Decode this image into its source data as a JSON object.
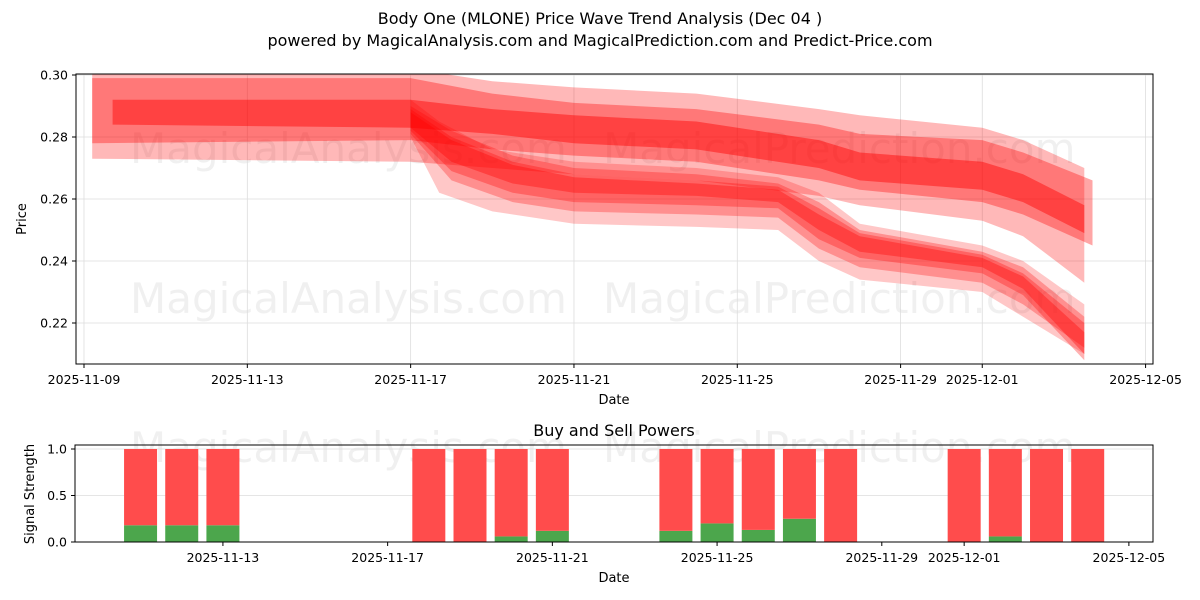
{
  "header": {
    "title": "Body One (MLONE) Price Wave Trend Analysis (Dec 04 )",
    "subtitle": "powered by MagicalAnalysis.com and MagicalPrediction.com and Predict-Price.com"
  },
  "watermarks": [
    "MagicalAnalysis.com",
    "MagicalPrediction.com"
  ],
  "colors": {
    "band": "#ff0000",
    "sell": "#ff4c4c",
    "buy": "#4ca64c",
    "grid": "#dddddd"
  },
  "chart_data": [
    {
      "type": "area",
      "title": "Body One (MLONE) Price Wave Trend Analysis (Dec 04 )",
      "xlabel": "Date",
      "ylabel": "Price",
      "ylim": [
        0.2068,
        0.3
      ],
      "grid": true,
      "x_ticks": [
        "2025-11-09",
        "2025-11-13",
        "2025-11-17",
        "2025-11-21",
        "2025-11-25",
        "2025-11-29",
        "2025-12-01",
        "2025-12-05"
      ],
      "y_ticks": [
        "0.22",
        "0.24",
        "0.26",
        "0.28",
        "0.30"
      ],
      "series": [
        {
          "name": "wave-upper-1",
          "opacity": 0.28,
          "x": [
            "2025-11-09.2",
            "2025-11-17",
            "2025-11-19",
            "2025-11-21",
            "2025-11-24",
            "2025-11-27",
            "2025-11-28",
            "2025-12-01",
            "2025-12-02",
            "2025-12-03.5"
          ],
          "upper": [
            0.302,
            0.302,
            0.298,
            0.296,
            0.294,
            0.289,
            0.287,
            0.283,
            0.279,
            0.27
          ],
          "lower": [
            0.273,
            0.272,
            0.27,
            0.268,
            0.266,
            0.261,
            0.258,
            0.253,
            0.248,
            0.233
          ]
        },
        {
          "name": "wave-upper-2",
          "opacity": 0.35,
          "x": [
            "2025-11-09.2",
            "2025-11-17",
            "2025-11-19",
            "2025-11-21",
            "2025-11-24",
            "2025-11-27",
            "2025-11-28",
            "2025-12-01",
            "2025-12-02",
            "2025-12-03.7"
          ],
          "upper": [
            0.299,
            0.299,
            0.294,
            0.291,
            0.289,
            0.284,
            0.281,
            0.279,
            0.275,
            0.266
          ],
          "lower": [
            0.278,
            0.279,
            0.276,
            0.274,
            0.272,
            0.266,
            0.263,
            0.259,
            0.255,
            0.245
          ]
        },
        {
          "name": "wave-upper-3",
          "opacity": 0.45,
          "x": [
            "2025-11-09.7",
            "2025-11-17",
            "2025-11-19",
            "2025-11-21",
            "2025-11-24",
            "2025-11-27",
            "2025-11-28",
            "2025-12-01",
            "2025-12-02",
            "2025-12-03.5"
          ],
          "upper": [
            0.292,
            0.292,
            0.289,
            0.287,
            0.285,
            0.279,
            0.275,
            0.272,
            0.268,
            0.258
          ],
          "lower": [
            0.284,
            0.283,
            0.281,
            0.278,
            0.276,
            0.27,
            0.266,
            0.263,
            0.259,
            0.249
          ]
        },
        {
          "name": "wave-lower-1",
          "opacity": 0.22,
          "x": [
            "2025-11-17",
            "2025-11-17.7",
            "2025-11-19",
            "2025-11-21",
            "2025-11-24",
            "2025-11-26",
            "2025-11-27",
            "2025-11-28",
            "2025-12-01",
            "2025-12-02",
            "2025-12-03.5"
          ],
          "upper": [
            0.292,
            0.285,
            0.276,
            0.272,
            0.27,
            0.267,
            0.262,
            0.252,
            0.245,
            0.24,
            0.226
          ],
          "lower": [
            0.28,
            0.262,
            0.256,
            0.252,
            0.251,
            0.25,
            0.24,
            0.234,
            0.23,
            0.222,
            0.21
          ]
        },
        {
          "name": "wave-lower-2",
          "opacity": 0.28,
          "x": [
            "2025-11-17",
            "2025-11-18",
            "2025-11-19.5",
            "2025-11-21",
            "2025-11-24",
            "2025-11-26",
            "2025-11-27",
            "2025-11-28",
            "2025-12-01",
            "2025-12-02",
            "2025-12-03.5"
          ],
          "upper": [
            0.29,
            0.282,
            0.274,
            0.27,
            0.268,
            0.265,
            0.259,
            0.25,
            0.243,
            0.238,
            0.222
          ],
          "lower": [
            0.281,
            0.266,
            0.259,
            0.256,
            0.255,
            0.254,
            0.244,
            0.238,
            0.233,
            0.226,
            0.212
          ]
        },
        {
          "name": "wave-lower-3",
          "opacity": 0.3,
          "x": [
            "2025-11-17",
            "2025-11-18",
            "2025-11-19.5",
            "2025-11-21",
            "2025-11-24",
            "2025-11-26",
            "2025-11-27",
            "2025-11-28",
            "2025-12-01",
            "2025-12-02",
            "2025-12-03.5"
          ],
          "upper": [
            0.289,
            0.28,
            0.272,
            0.268,
            0.266,
            0.264,
            0.257,
            0.249,
            0.242,
            0.236,
            0.22
          ],
          "lower": [
            0.282,
            0.269,
            0.262,
            0.259,
            0.258,
            0.257,
            0.247,
            0.241,
            0.236,
            0.229,
            0.208
          ]
        },
        {
          "name": "wave-lower-4",
          "opacity": 0.35,
          "x": [
            "2025-11-17",
            "2025-11-18",
            "2025-11-19.5",
            "2025-11-21",
            "2025-11-24",
            "2025-11-26",
            "2025-11-27",
            "2025-11-28",
            "2025-12-01",
            "2025-12-02",
            "2025-12-03.5"
          ],
          "upper": [
            0.288,
            0.279,
            0.271,
            0.267,
            0.265,
            0.263,
            0.255,
            0.248,
            0.241,
            0.235,
            0.217
          ],
          "lower": [
            0.283,
            0.272,
            0.265,
            0.262,
            0.261,
            0.259,
            0.25,
            0.243,
            0.238,
            0.231,
            0.21
          ]
        }
      ]
    },
    {
      "type": "bar",
      "title": "Buy and Sell Powers",
      "xlabel": "Date",
      "ylabel": "Signal Strength",
      "ylim": [
        0,
        1.05
      ],
      "grid": true,
      "x_ticks": [
        "2025-11-13",
        "2025-11-17",
        "2025-11-21",
        "2025-11-25",
        "2025-11-29",
        "2025-12-01",
        "2025-12-05"
      ],
      "y_ticks": [
        "0.0",
        "0.5",
        "1.0"
      ],
      "categories": [
        "2025-11-11",
        "2025-11-12",
        "2025-11-13",
        "2025-11-18",
        "2025-11-19",
        "2025-11-20",
        "2025-11-21",
        "2025-11-24",
        "2025-11-25",
        "2025-11-26",
        "2025-11-27",
        "2025-11-28",
        "2025-12-01",
        "2025-12-02",
        "2025-12-03",
        "2025-12-04"
      ],
      "series": [
        {
          "name": "Buy",
          "color": "#4ca64c",
          "values": [
            0.18,
            0.18,
            0.18,
            0.0,
            0.0,
            0.06,
            0.12,
            0.12,
            0.2,
            0.13,
            0.25,
            0.0,
            0.0,
            0.06,
            0.0,
            0.0
          ]
        },
        {
          "name": "Sell",
          "color": "#ff4c4c",
          "values": [
            0.82,
            0.82,
            0.82,
            1.0,
            1.0,
            0.94,
            0.88,
            0.88,
            0.8,
            0.87,
            0.75,
            1.0,
            1.0,
            0.94,
            1.0,
            1.0
          ]
        }
      ]
    }
  ]
}
